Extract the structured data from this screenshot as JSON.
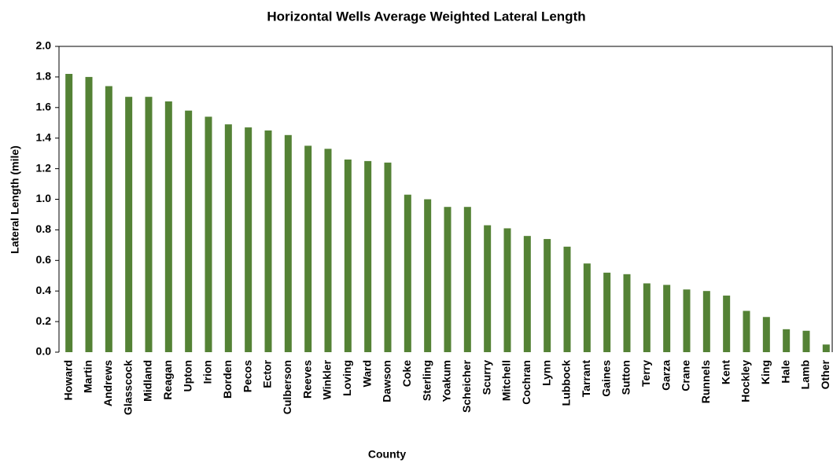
{
  "chart_data": {
    "type": "bar",
    "title": "Horizontal Wells Average Weighted Lateral Length",
    "x_label": "County",
    "y_label": "Lateral Length (mile)",
    "categories": [
      "Howard",
      "Martin",
      "Andrews",
      "Glasscock",
      "Midland",
      "Reagan",
      "Upton",
      "Irion",
      "Borden",
      "Pecos",
      "Ector",
      "Culberson",
      "Reeves",
      "Winkler",
      "Loving",
      "Ward",
      "Dawson",
      "Coke",
      "Sterling",
      "Yoakum",
      "Scheicher",
      "Scurry",
      "Mitchell",
      "Cochran",
      "Lynn",
      "Lubbock",
      "Tarrant",
      "Gaines",
      "Sutton",
      "Terry",
      "Garza",
      "Crane",
      "Runnels",
      "Kent",
      "Hockley",
      "King",
      "Hale",
      "Lamb",
      "Other"
    ],
    "values": [
      1.82,
      1.8,
      1.74,
      1.67,
      1.67,
      1.64,
      1.58,
      1.54,
      1.49,
      1.47,
      1.45,
      1.42,
      1.35,
      1.33,
      1.26,
      1.25,
      1.24,
      1.03,
      1.0,
      0.95,
      0.95,
      0.83,
      0.81,
      0.76,
      0.74,
      0.69,
      0.58,
      0.52,
      0.51,
      0.45,
      0.44,
      0.41,
      0.4,
      0.37,
      0.27,
      0.23,
      0.15,
      0.14,
      0.05
    ],
    "color": "#548235",
    "ylim": [
      0,
      2
    ],
    "yticks": [
      {
        "value": 0,
        "label": "0.0"
      },
      {
        "value": 0.2,
        "label": "0.2"
      },
      {
        "value": 0.4,
        "label": "0.4"
      },
      {
        "value": 0.6,
        "label": "0.6"
      },
      {
        "value": 0.8,
        "label": "0.8"
      },
      {
        "value": 1,
        "label": "1.0"
      },
      {
        "value": 1.2,
        "label": "1.2"
      },
      {
        "value": 1.4,
        "label": "1.4"
      },
      {
        "value": 1.6,
        "label": "1.6"
      },
      {
        "value": 1.8,
        "label": "1.8"
      },
      {
        "value": 2,
        "label": "2.0"
      }
    ],
    "grid": false
  }
}
